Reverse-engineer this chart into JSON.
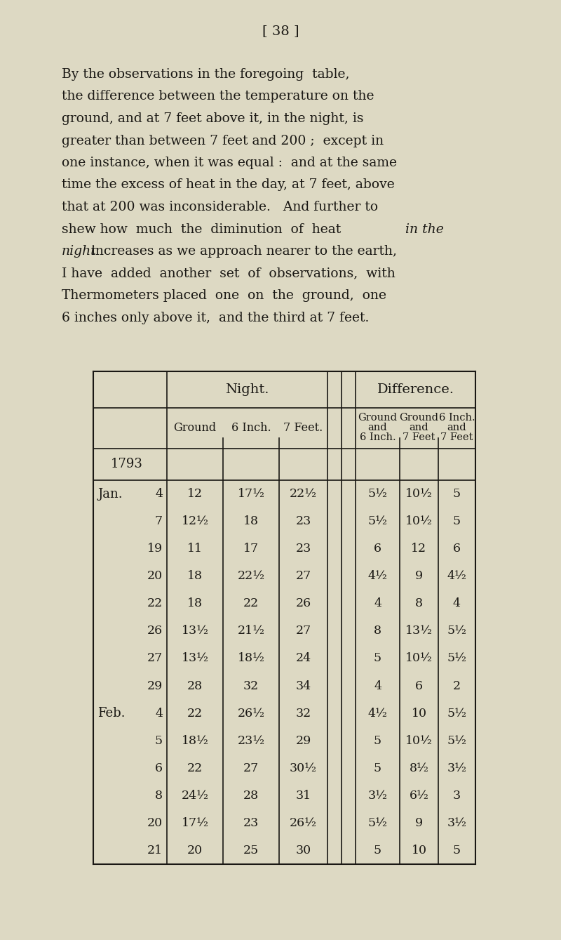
{
  "bg_color": "#ddd9c3",
  "text_color": "#1a1814",
  "page_header": "[ 38 ]",
  "lines": [
    {
      "text": "By the observations in the foregoing  table,",
      "italic_parts": []
    },
    {
      "text": "the difference between the temperature on the",
      "italic_parts": []
    },
    {
      "text": "ground, and at 7 feet above it, in the night, is",
      "italic_parts": []
    },
    {
      "text": "greater than between 7 feet and 200 ;  except in",
      "italic_parts": []
    },
    {
      "text": "one instance, when it was equal :  and at the same",
      "italic_parts": []
    },
    {
      "text": "time the excess of heat in the day, at 7 feet, above",
      "italic_parts": []
    },
    {
      "text": "that at 200 was inconsiderable.   And further to",
      "italic_parts": []
    },
    {
      "text": "shew how  much  the  diminution  of  heat ",
      "suffix": "in the",
      "suffix_italic": true
    },
    {
      "text": "night",
      "prefix_italic": true,
      "suffix": " increases as we approach nearer to the earth,"
    },
    {
      "text": "I have  added  another  set  of  observations,  with",
      "italic_parts": []
    },
    {
      "text": "Thermometers placed  one  on  the  ground,  one",
      "italic_parts": []
    },
    {
      "text": "6 inches only above it,  and the third at 7 feet.",
      "italic_parts": []
    }
  ],
  "table_rows": [
    {
      "month": "1793",
      "day": "",
      "n1": "",
      "n2": "",
      "n3": "",
      "d1": "",
      "d2": "",
      "d3": ""
    },
    {
      "month": "Jan.",
      "day": "4",
      "n1": "12",
      "n2": "17½",
      "n3": "22½",
      "d1": "5½",
      "d2": "10½",
      "d3": "5"
    },
    {
      "month": "",
      "day": "7",
      "n1": "12½",
      "n2": "18",
      "n3": "23",
      "d1": "5½",
      "d2": "10½",
      "d3": "5"
    },
    {
      "month": "",
      "day": "19",
      "n1": "11",
      "n2": "17",
      "n3": "23",
      "d1": "6",
      "d2": "12",
      "d3": "6"
    },
    {
      "month": "",
      "day": "20",
      "n1": "18",
      "n2": "22½",
      "n3": "27",
      "d1": "4½",
      "d2": "9",
      "d3": "4½"
    },
    {
      "month": "",
      "day": "22",
      "n1": "18",
      "n2": "22",
      "n3": "26",
      "d1": "4",
      "d2": "8",
      "d3": "4"
    },
    {
      "month": "",
      "day": "26",
      "n1": "13½",
      "n2": "21½",
      "n3": "27",
      "d1": "8",
      "d2": "13½",
      "d3": "5½"
    },
    {
      "month": "",
      "day": "27",
      "n1": "13½",
      "n2": "18½",
      "n3": "24",
      "d1": "5",
      "d2": "10½",
      "d3": "5½"
    },
    {
      "month": "",
      "day": "29",
      "n1": "28",
      "n2": "32",
      "n3": "34",
      "d1": "4",
      "d2": "6",
      "d3": "2"
    },
    {
      "month": "Feb.",
      "day": "4",
      "n1": "22",
      "n2": "26½",
      "n3": "32",
      "d1": "4½",
      "d2": "10",
      "d3": "5½"
    },
    {
      "month": "",
      "day": "5",
      "n1": "18½",
      "n2": "23½",
      "n3": "29",
      "d1": "5",
      "d2": "10½",
      "d3": "5½"
    },
    {
      "month": "",
      "day": "6",
      "n1": "22",
      "n2": "27",
      "n3": "30½",
      "d1": "5",
      "d2": "8½",
      "d3": "3½"
    },
    {
      "month": "",
      "day": "8",
      "n1": "24½",
      "n2": "28",
      "n3": "31",
      "d1": "3½",
      "d2": "6½",
      "d3": "3"
    },
    {
      "month": "",
      "day": "20",
      "n1": "17½",
      "n2": "23",
      "n3": "26½",
      "d1": "5½",
      "d2": "9",
      "d3": "3½"
    },
    {
      "month": "",
      "day": "21",
      "n1": "20",
      "n2": "25",
      "n3": "30",
      "d1": "5",
      "d2": "10",
      "d3": "5"
    }
  ]
}
